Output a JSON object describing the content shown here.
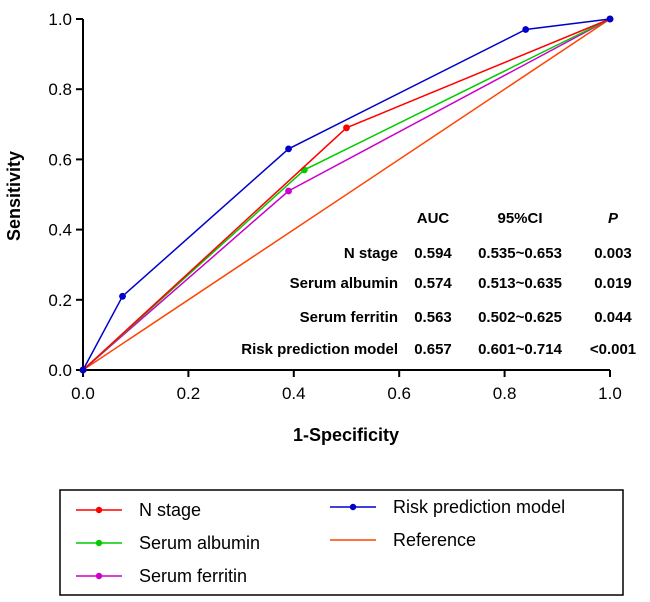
{
  "chart_data": {
    "type": "line",
    "title": "",
    "xlabel": "1-Specificity",
    "ylabel": "Sensitivity",
    "xlim": [
      0,
      1
    ],
    "ylim": [
      0,
      1
    ],
    "xticks": [
      "0.0",
      "0.2",
      "0.4",
      "0.6",
      "0.8",
      "1.0"
    ],
    "yticks": [
      "0.0",
      "0.2",
      "0.4",
      "0.6",
      "0.8",
      "1.0"
    ],
    "grid": false,
    "legend_position": "bottom",
    "series": [
      {
        "name": "N stage",
        "color": "#ff0000",
        "markers": true,
        "x": [
          0,
          0.5,
          1
        ],
        "y": [
          0,
          0.69,
          1
        ]
      },
      {
        "name": "Serum albumin",
        "color": "#00cc00",
        "markers": true,
        "x": [
          0,
          0.42,
          1
        ],
        "y": [
          0,
          0.57,
          1
        ]
      },
      {
        "name": "Serum ferritin",
        "color": "#cc00cc",
        "markers": true,
        "x": [
          0,
          0.39,
          1
        ],
        "y": [
          0,
          0.51,
          1
        ]
      },
      {
        "name": "Risk prediction model",
        "color": "#0000cc",
        "markers": true,
        "x": [
          0,
          0.075,
          0.39,
          0.84,
          1
        ],
        "y": [
          0,
          0.21,
          0.63,
          0.97,
          1
        ]
      },
      {
        "name": "Reference",
        "color": "#ff4400",
        "markers": false,
        "x": [
          0,
          1
        ],
        "y": [
          0,
          1
        ]
      }
    ],
    "table": {
      "headers": [
        "AUC",
        "95%CI",
        "P"
      ],
      "rows": [
        {
          "label": "N stage",
          "auc": "0.594",
          "ci": "0.535~0.653",
          "p": "0.003"
        },
        {
          "label": "Serum albumin",
          "auc": "0.574",
          "ci": "0.513~0.635",
          "p": "0.019"
        },
        {
          "label": "Serum ferritin",
          "auc": "0.563",
          "ci": "0.502~0.625",
          "p": "0.044"
        },
        {
          "label": "Risk prediction model",
          "auc": "0.657",
          "ci": "0.601~0.714",
          "p": "<0.001"
        }
      ]
    }
  }
}
